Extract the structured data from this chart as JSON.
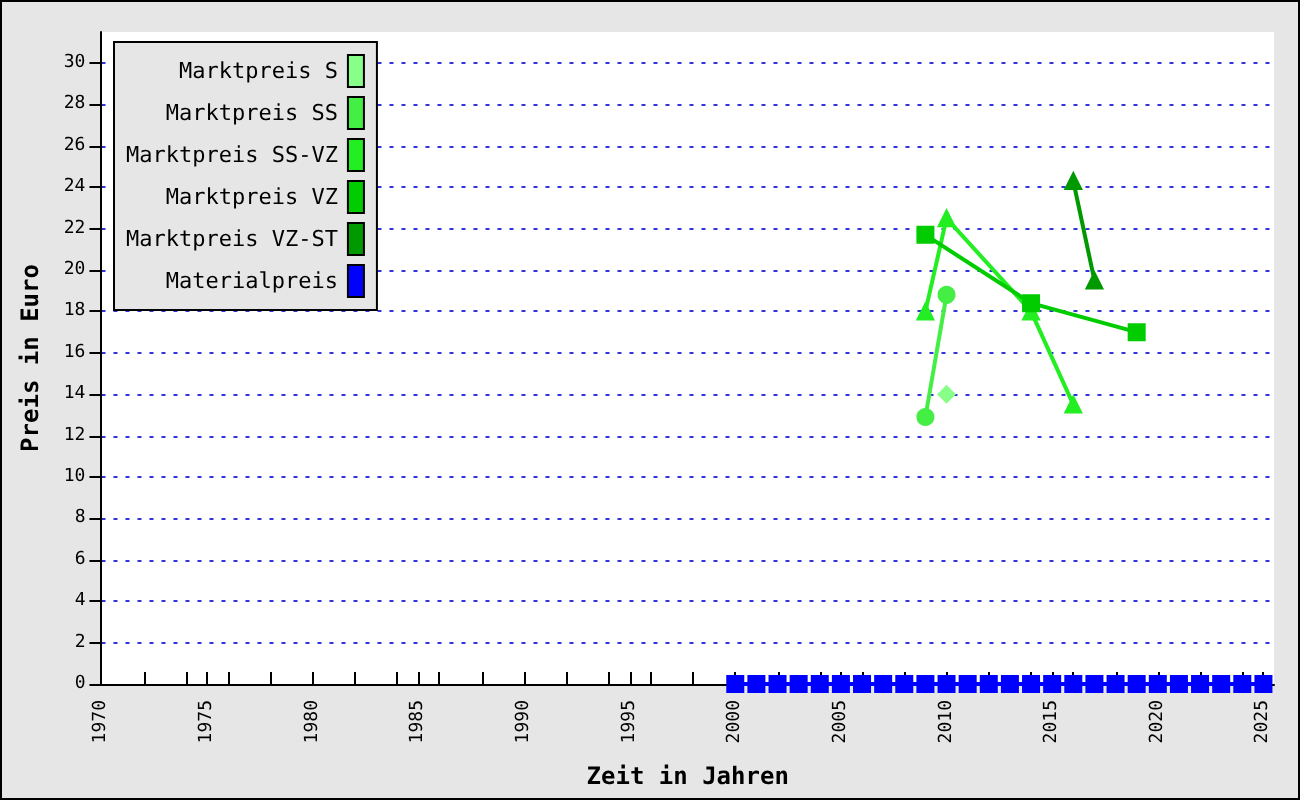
{
  "chart_data": {
    "type": "line",
    "xlabel": "Zeit in Jahren",
    "ylabel": "Preis in Euro",
    "xlim": [
      1970,
      2025.5
    ],
    "ylim": [
      0,
      31.5
    ],
    "xticks": [
      1970,
      {
        "value": 1972,
        "label": null
      },
      {
        "value": 1974,
        "label": null
      },
      1975,
      {
        "value": 1976,
        "label": null
      },
      {
        "value": 1978,
        "label": null
      },
      1980,
      {
        "value": 1982,
        "label": null
      },
      {
        "value": 1984,
        "label": null
      },
      1985,
      {
        "value": 1986,
        "label": null
      },
      {
        "value": 1988,
        "label": null
      },
      1990,
      {
        "value": 1992,
        "label": null
      },
      {
        "value": 1994,
        "label": null
      },
      1995,
      {
        "value": 1996,
        "label": null
      },
      {
        "value": 1998,
        "label": null
      },
      2000,
      {
        "value": 2002,
        "label": null
      },
      {
        "value": 2004,
        "label": null
      },
      2005,
      {
        "value": 2006,
        "label": null
      },
      {
        "value": 2008,
        "label": null
      },
      2010,
      {
        "value": 2012,
        "label": null
      },
      {
        "value": 2014,
        "label": null
      },
      2015,
      {
        "value": 2016,
        "label": null
      },
      {
        "value": 2018,
        "label": null
      },
      2020,
      {
        "value": 2022,
        "label": null
      },
      {
        "value": 2024,
        "label": null
      },
      2025
    ],
    "yticks": [
      0,
      2,
      4,
      6,
      8,
      10,
      12,
      14,
      16,
      18,
      20,
      22,
      24,
      26,
      28,
      30
    ],
    "grid": "y",
    "legend": "top left",
    "line_style": "solid",
    "series": [
      {
        "name": "Marktpreis S",
        "color": "#88ff88",
        "marker": "diamond",
        "x": [
          2010
        ],
        "values": [
          14
        ]
      },
      {
        "name": "Marktpreis SS",
        "color": "#44ee44",
        "marker": "circle",
        "x": [
          2009,
          2010
        ],
        "values": [
          12.9,
          18.8
        ]
      },
      {
        "name": "Marktpreis SS-VZ",
        "color": "#22ee22",
        "marker": "triangle",
        "x": [
          2009,
          2010,
          2014,
          2016
        ],
        "values": [
          18,
          22.5,
          18,
          13.5
        ]
      },
      {
        "name": "Marktpreis VZ",
        "color": "#00cc00",
        "marker": "square",
        "x": [
          2009,
          2014,
          2019
        ],
        "values": [
          21.7,
          18.4,
          17
        ]
      },
      {
        "name": "Marktpreis VZ-ST",
        "color": "#009900",
        "marker": "triangle",
        "x": [
          2016,
          2017
        ],
        "values": [
          24.3,
          19.5
        ]
      },
      {
        "name": "Materialpreis",
        "color": "#0000ff",
        "marker": "square",
        "x": [
          2000,
          2001,
          2002,
          2003,
          2004,
          2005,
          2006,
          2007,
          2008,
          2009,
          2010,
          2011,
          2012,
          2013,
          2014,
          2015,
          2016,
          2017,
          2018,
          2019,
          2020,
          2021,
          2022,
          2023,
          2024,
          2025
        ],
        "values": [
          0,
          0,
          0,
          0,
          0,
          0,
          0,
          0,
          0,
          0,
          0,
          0,
          0,
          0,
          0,
          0,
          0,
          0,
          0,
          0,
          0,
          0,
          0,
          0,
          0,
          0
        ]
      }
    ]
  }
}
